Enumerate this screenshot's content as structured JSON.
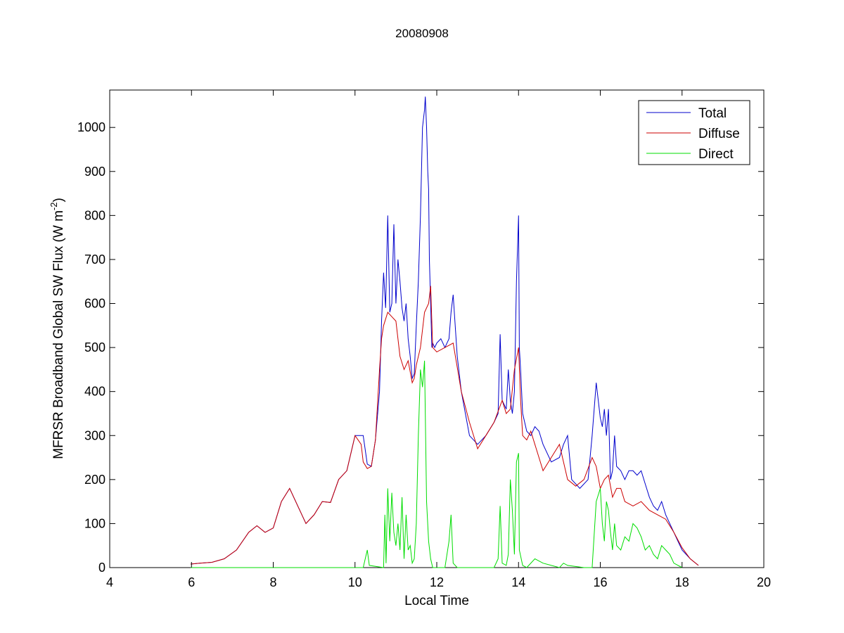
{
  "chart_data": {
    "type": "line",
    "title": "20080908",
    "xlabel": "Local Time",
    "ylabel": "MFRSR Broadband Global SW Flux (W m",
    "ylabel_sup": "-2",
    "ylabel_close": ")",
    "xlim": [
      4,
      20
    ],
    "ylim": [
      0,
      1085
    ],
    "xticks": [
      4,
      6,
      8,
      10,
      12,
      14,
      16,
      18,
      20
    ],
    "yticks": [
      0,
      100,
      200,
      300,
      400,
      500,
      600,
      700,
      800,
      900,
      1000
    ],
    "grid": false,
    "legend_position": "top-right",
    "series": [
      {
        "name": "Total",
        "color": "#0000cc",
        "x": [
          5.98,
          6.2,
          6.5,
          6.8,
          7.1,
          7.4,
          7.6,
          7.8,
          8.0,
          8.2,
          8.4,
          8.6,
          8.8,
          9.0,
          9.2,
          9.4,
          9.6,
          9.8,
          10.0,
          10.15,
          10.2,
          10.3,
          10.4,
          10.5,
          10.6,
          10.65,
          10.7,
          10.75,
          10.8,
          10.85,
          10.9,
          10.95,
          11.0,
          11.05,
          11.1,
          11.15,
          11.2,
          11.25,
          11.3,
          11.35,
          11.4,
          11.45,
          11.5,
          11.55,
          11.6,
          11.65,
          11.7,
          11.72,
          11.75,
          11.78,
          11.8,
          11.82,
          11.85,
          11.88,
          11.9,
          11.95,
          12.0,
          12.1,
          12.2,
          12.3,
          12.35,
          12.4,
          12.5,
          12.6,
          12.7,
          12.8,
          13.0,
          13.2,
          13.4,
          13.5,
          13.55,
          13.6,
          13.7,
          13.75,
          13.8,
          13.85,
          13.9,
          13.95,
          14.0,
          14.02,
          14.05,
          14.1,
          14.2,
          14.3,
          14.4,
          14.5,
          14.6,
          14.8,
          15.0,
          15.1,
          15.2,
          15.3,
          15.5,
          15.7,
          15.8,
          15.9,
          15.95,
          16.0,
          16.05,
          16.1,
          16.15,
          16.2,
          16.25,
          16.3,
          16.35,
          16.4,
          16.5,
          16.6,
          16.7,
          16.8,
          16.9,
          17.0,
          17.1,
          17.2,
          17.3,
          17.4,
          17.5,
          17.6,
          17.7,
          17.8,
          17.9,
          18.0,
          18.2,
          18.4
        ],
        "y": [
          8,
          10,
          12,
          20,
          40,
          80,
          95,
          80,
          90,
          150,
          180,
          140,
          100,
          120,
          150,
          148,
          200,
          220,
          300,
          300,
          300,
          235,
          230,
          290,
          400,
          560,
          670,
          590,
          800,
          580,
          600,
          780,
          600,
          700,
          650,
          590,
          560,
          600,
          520,
          480,
          430,
          440,
          550,
          650,
          800,
          1000,
          1040,
          1070,
          1000,
          900,
          860,
          700,
          600,
          500,
          510,
          500,
          510,
          520,
          500,
          520,
          580,
          620,
          480,
          400,
          350,
          300,
          280,
          300,
          330,
          350,
          530,
          380,
          360,
          450,
          380,
          350,
          400,
          650,
          800,
          500,
          450,
          350,
          310,
          300,
          320,
          310,
          280,
          240,
          250,
          280,
          300,
          200,
          180,
          200,
          300,
          420,
          380,
          340,
          320,
          360,
          300,
          360,
          200,
          220,
          300,
          230,
          220,
          200,
          220,
          220,
          210,
          220,
          190,
          160,
          140,
          130,
          150,
          120,
          100,
          80,
          60,
          40,
          20,
          5
        ],
        "comment_dummy": ""
      },
      {
        "name": "Diffuse",
        "color": "#cc0000",
        "x": [
          5.98,
          6.2,
          6.5,
          6.8,
          7.1,
          7.4,
          7.6,
          7.8,
          8.0,
          8.2,
          8.4,
          8.6,
          8.8,
          9.0,
          9.2,
          9.4,
          9.6,
          9.8,
          10.0,
          10.15,
          10.2,
          10.3,
          10.4,
          10.5,
          10.6,
          10.65,
          10.7,
          10.8,
          10.9,
          11.0,
          11.1,
          11.2,
          11.3,
          11.4,
          11.45,
          11.5,
          11.6,
          11.7,
          11.8,
          11.85,
          11.9,
          12.0,
          12.2,
          12.4,
          12.6,
          12.8,
          13.0,
          13.2,
          13.4,
          13.6,
          13.7,
          13.8,
          13.9,
          14.0,
          14.05,
          14.1,
          14.2,
          14.3,
          14.4,
          14.5,
          14.6,
          14.8,
          15.0,
          15.2,
          15.4,
          15.6,
          15.8,
          15.9,
          16.0,
          16.1,
          16.2,
          16.3,
          16.4,
          16.5,
          16.6,
          16.8,
          17.0,
          17.2,
          17.4,
          17.6,
          17.8,
          18.0,
          18.2,
          18.4
        ],
        "y": [
          8,
          10,
          12,
          20,
          40,
          80,
          95,
          80,
          90,
          150,
          180,
          140,
          100,
          120,
          150,
          148,
          200,
          220,
          300,
          280,
          240,
          225,
          230,
          290,
          450,
          520,
          550,
          580,
          570,
          560,
          480,
          450,
          470,
          420,
          430,
          460,
          500,
          580,
          600,
          640,
          500,
          490,
          500,
          510,
          400,
          330,
          270,
          300,
          330,
          380,
          350,
          360,
          450,
          500,
          380,
          300,
          290,
          310,
          280,
          250,
          220,
          250,
          280,
          200,
          185,
          200,
          250,
          230,
          180,
          200,
          210,
          160,
          180,
          180,
          150,
          140,
          150,
          130,
          120,
          110,
          80,
          45,
          20,
          5
        ],
        "comment_dummy": ""
      },
      {
        "name": "Direct",
        "color": "#00dd00",
        "x": [
          5.98,
          10.2,
          10.25,
          10.3,
          10.35,
          10.7,
          10.73,
          10.76,
          10.8,
          10.85,
          10.9,
          10.95,
          11.0,
          11.05,
          11.1,
          11.15,
          11.2,
          11.25,
          11.3,
          11.35,
          11.4,
          11.45,
          11.5,
          11.55,
          11.6,
          11.65,
          11.7,
          11.75,
          11.8,
          11.85,
          11.9,
          12.0,
          12.2,
          12.3,
          12.35,
          12.4,
          12.5,
          13.0,
          13.4,
          13.5,
          13.55,
          13.6,
          13.7,
          13.75,
          13.8,
          13.85,
          13.9,
          13.95,
          14.0,
          14.02,
          14.1,
          14.2,
          14.4,
          14.6,
          14.8,
          15.0,
          15.1,
          15.2,
          15.6,
          15.8,
          15.9,
          16.0,
          16.05,
          16.1,
          16.15,
          16.2,
          16.25,
          16.3,
          16.35,
          16.4,
          16.5,
          16.6,
          16.7,
          16.8,
          16.9,
          17.0,
          17.1,
          17.2,
          17.3,
          17.4,
          17.5,
          17.6,
          17.7,
          17.8,
          18.0
        ],
        "y": [
          0,
          0,
          20,
          40,
          5,
          0,
          120,
          10,
          180,
          60,
          170,
          80,
          50,
          100,
          40,
          160,
          20,
          120,
          40,
          50,
          10,
          20,
          100,
          300,
          450,
          410,
          470,
          150,
          60,
          20,
          0,
          0,
          0,
          60,
          120,
          10,
          0,
          0,
          0,
          20,
          140,
          10,
          5,
          30,
          200,
          130,
          30,
          240,
          260,
          40,
          5,
          0,
          20,
          10,
          5,
          0,
          10,
          5,
          0,
          0,
          150,
          180,
          100,
          60,
          150,
          130,
          80,
          40,
          100,
          50,
          40,
          70,
          60,
          100,
          90,
          70,
          40,
          50,
          30,
          20,
          50,
          40,
          30,
          10,
          0
        ],
        "comment_dummy": ""
      }
    ]
  }
}
